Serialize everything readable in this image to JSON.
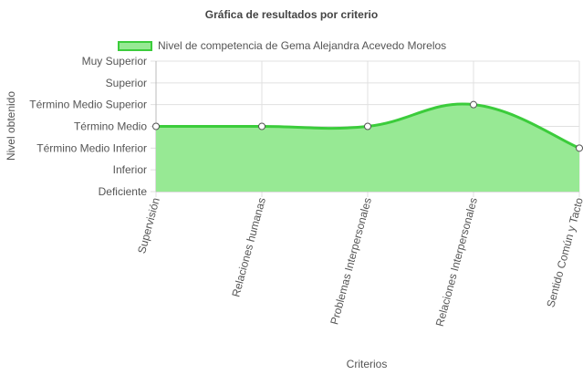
{
  "chart_data": {
    "type": "line",
    "title": "Gráfica de resultados por criterio",
    "xlabel": "Criterios",
    "ylabel": "Nivel obtenido",
    "categories": [
      "Supervisión",
      "Relaciones humanas",
      "Problemas Interpersonales",
      "Relaciones Interpersonales",
      "Sentido Común y Tacto"
    ],
    "y_levels": [
      "Deficiente",
      "Inferior",
      "Término Medio Inferior",
      "Término Medio",
      "Término Medio Superior",
      "Superior",
      "Muy Superior"
    ],
    "ylim": [
      0,
      6
    ],
    "series": [
      {
        "name": "Nivel de competencia de Gema Alejandra Acevedo Morelos",
        "values": [
          3,
          3,
          3,
          4,
          2
        ]
      }
    ],
    "fill": true,
    "smooth": true,
    "grid": true,
    "legend_position": "top",
    "colors": {
      "fill": "#97e994",
      "line": "#3bcc3b",
      "grid": "#e0e0e0",
      "axis": "#bbbbbb"
    }
  }
}
